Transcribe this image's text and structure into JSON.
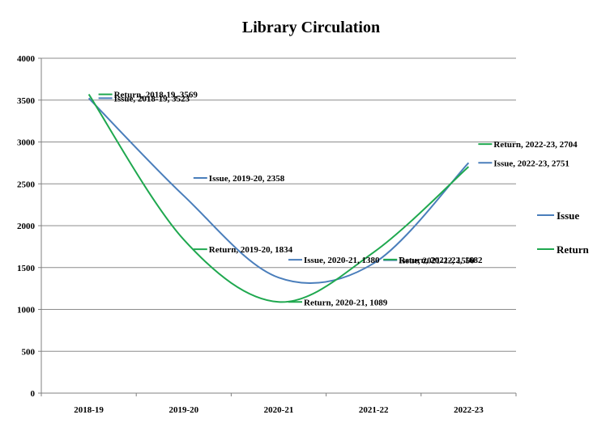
{
  "chart_data": {
    "type": "line",
    "title": "Library Circulation",
    "categories": [
      "2018-19",
      "2019-20",
      "2020-21",
      "2021-22",
      "2022-23"
    ],
    "ylim": [
      0,
      4000
    ],
    "yticks": [
      0,
      500,
      1000,
      1500,
      2000,
      2500,
      3000,
      3500,
      4000
    ],
    "grid": true,
    "legend_position": "right",
    "smooth": true,
    "series": [
      {
        "name": "Issue",
        "color": "#4a7ebb",
        "values": [
          3523,
          2358,
          1380,
          1550,
          2751
        ],
        "labels": [
          "Issue, 2018-19, 3523",
          "Issue, 2019-20, 2358",
          "Issue, 2020-21, 1380",
          "Issue, 2021-22, 1550",
          "Issue, 2022-23, 2751"
        ]
      },
      {
        "name": "Return",
        "color": "#1fa84f",
        "values": [
          3569,
          1834,
          1089,
          1682,
          2704
        ],
        "labels": [
          "Return, 2018-19, 3569",
          "Return, 2019-20, 1834",
          "Return, 2020-21, 1089",
          "Return, 2021-22, 1682",
          "Return, 2022-23, 2704"
        ]
      }
    ]
  }
}
